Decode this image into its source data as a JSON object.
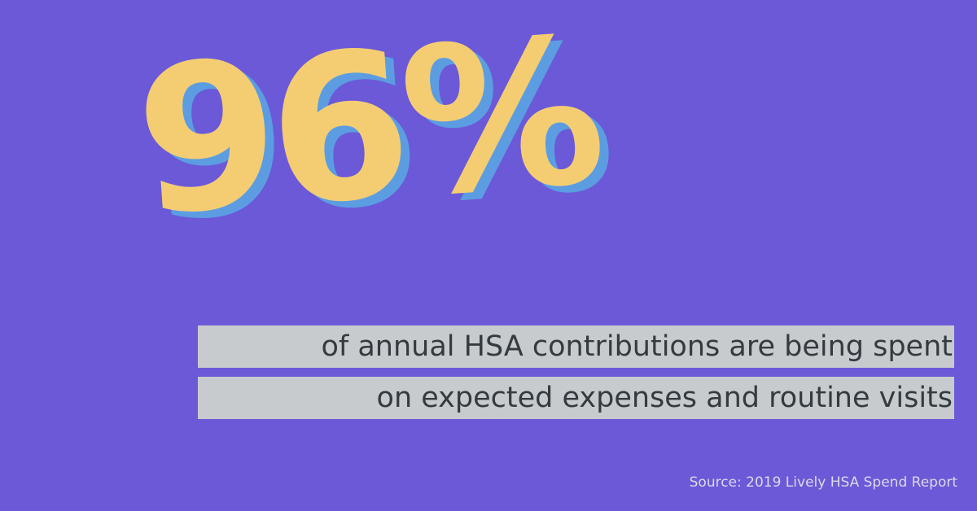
{
  "headline": {
    "value": "96%"
  },
  "caption": {
    "line1": "of annual HSA contributions are being spent",
    "line2": "on expected expenses and routine visits"
  },
  "source": {
    "text": "Source: 2019 Lively HSA Spend Report"
  },
  "colors": {
    "background": "#6b59d8",
    "headline": "#f4cd73",
    "headline_shadow": "#5c9de2",
    "caption_band": "#c7cbce",
    "caption_text": "#343b40",
    "source_text": "#dcd9e6"
  }
}
